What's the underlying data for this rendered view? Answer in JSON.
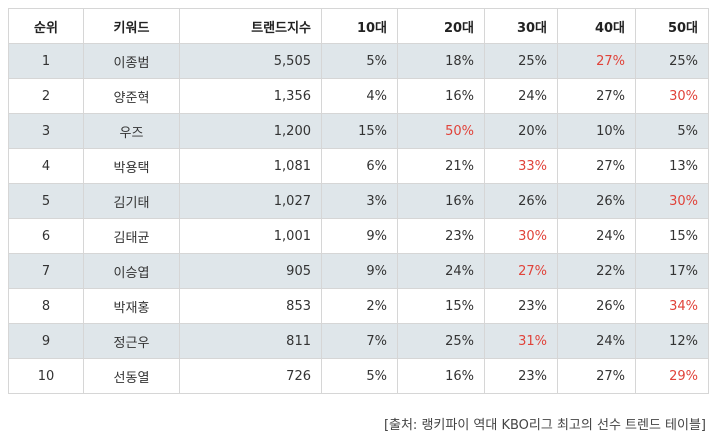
{
  "table": {
    "headers": [
      "순위",
      "키워드",
      "트랜드지수",
      "10대",
      "20대",
      "30대",
      "40대",
      "50대"
    ],
    "rows": [
      {
        "rank": "1",
        "keyword": "이종범",
        "index": "5,505",
        "v10": "5%",
        "v20": "18%",
        "v30": "25%",
        "v40": "27%",
        "v50": "25%",
        "highlight": "v40"
      },
      {
        "rank": "2",
        "keyword": "양준혁",
        "index": "1,356",
        "v10": "4%",
        "v20": "16%",
        "v30": "24%",
        "v40": "27%",
        "v50": "30%",
        "highlight": "v50"
      },
      {
        "rank": "3",
        "keyword": "우즈",
        "index": "1,200",
        "v10": "15%",
        "v20": "50%",
        "v30": "20%",
        "v40": "10%",
        "v50": "5%",
        "highlight": "v20"
      },
      {
        "rank": "4",
        "keyword": "박용택",
        "index": "1,081",
        "v10": "6%",
        "v20": "21%",
        "v30": "33%",
        "v40": "27%",
        "v50": "13%",
        "highlight": "v30"
      },
      {
        "rank": "5",
        "keyword": "김기태",
        "index": "1,027",
        "v10": "3%",
        "v20": "16%",
        "v30": "26%",
        "v40": "26%",
        "v50": "30%",
        "highlight": "v50"
      },
      {
        "rank": "6",
        "keyword": "김태균",
        "index": "1,001",
        "v10": "9%",
        "v20": "23%",
        "v30": "30%",
        "v40": "24%",
        "v50": "15%",
        "highlight": "v30"
      },
      {
        "rank": "7",
        "keyword": "이승엽",
        "index": "905",
        "v10": "9%",
        "v20": "24%",
        "v30": "27%",
        "v40": "22%",
        "v50": "17%",
        "highlight": "v30"
      },
      {
        "rank": "8",
        "keyword": "박재홍",
        "index": "853",
        "v10": "2%",
        "v20": "15%",
        "v30": "23%",
        "v40": "26%",
        "v50": "34%",
        "highlight": "v50"
      },
      {
        "rank": "9",
        "keyword": "정근우",
        "index": "811",
        "v10": "7%",
        "v20": "25%",
        "v30": "31%",
        "v40": "24%",
        "v50": "12%",
        "highlight": "v30"
      },
      {
        "rank": "10",
        "keyword": "선동열",
        "index": "726",
        "v10": "5%",
        "v20": "16%",
        "v30": "23%",
        "v40": "27%",
        "v50": "29%",
        "highlight": "v50"
      }
    ]
  },
  "source_note": "[출처: 랭키파이 역대 KBO리그 최고의 선수 트렌드 테이블]",
  "colors": {
    "highlight_text": "#e0433a",
    "stripe_row": "#dfe6ea",
    "border": "#d6d6d6"
  }
}
